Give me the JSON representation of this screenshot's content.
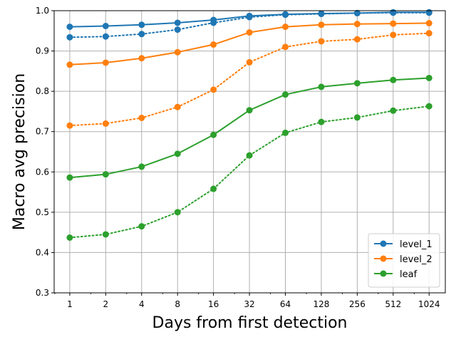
{
  "chart_data": {
    "type": "line",
    "title": "",
    "xlabel": "Days from first detection",
    "ylabel": "Macro avg precision",
    "x_scale": "log2",
    "x": [
      1,
      2,
      4,
      8,
      16,
      32,
      64,
      128,
      256,
      512,
      1024
    ],
    "x_tick_labels": [
      "1",
      "2",
      "4",
      "8",
      "16",
      "32",
      "64",
      "128",
      "256",
      "512",
      "1024"
    ],
    "xlim": [
      0.74,
      1400
    ],
    "ylim": [
      0.3,
      1.0
    ],
    "y_ticks": [
      0.3,
      0.4,
      0.5,
      0.6,
      0.7,
      0.8,
      0.9,
      1.0
    ],
    "y_tick_labels": [
      "0.3",
      "0.4",
      "0.5",
      "0.6",
      "0.7",
      "0.8",
      "0.9",
      "1.0"
    ],
    "grid": true,
    "legend_position": "bottom-right",
    "series": [
      {
        "name": "level_1",
        "color": "#1f77b4",
        "linestyle": "solid",
        "values": [
          0.96,
          0.962,
          0.965,
          0.97,
          0.977,
          0.987,
          0.991,
          0.993,
          0.994,
          0.996,
          0.996
        ]
      },
      {
        "name": "",
        "color": "#1f77b4",
        "linestyle": "dotted",
        "values": [
          0.934,
          0.936,
          0.942,
          0.953,
          0.97,
          0.984,
          0.99,
          0.992,
          0.994,
          0.995,
          0.995
        ]
      },
      {
        "name": "level_2",
        "color": "#ff7f0e",
        "linestyle": "solid",
        "values": [
          0.866,
          0.871,
          0.882,
          0.897,
          0.916,
          0.946,
          0.96,
          0.965,
          0.967,
          0.968,
          0.969
        ]
      },
      {
        "name": "",
        "color": "#ff7f0e",
        "linestyle": "dotted",
        "values": [
          0.715,
          0.72,
          0.734,
          0.761,
          0.804,
          0.872,
          0.91,
          0.924,
          0.929,
          0.94,
          0.944
        ]
      },
      {
        "name": "leaf",
        "color": "#2ca02c",
        "linestyle": "solid",
        "values": [
          0.586,
          0.594,
          0.613,
          0.645,
          0.692,
          0.753,
          0.792,
          0.811,
          0.82,
          0.828,
          0.833
        ]
      },
      {
        "name": "",
        "color": "#2ca02c",
        "linestyle": "dotted",
        "values": [
          0.437,
          0.445,
          0.465,
          0.5,
          0.558,
          0.641,
          0.697,
          0.724,
          0.735,
          0.752,
          0.763
        ]
      }
    ]
  }
}
